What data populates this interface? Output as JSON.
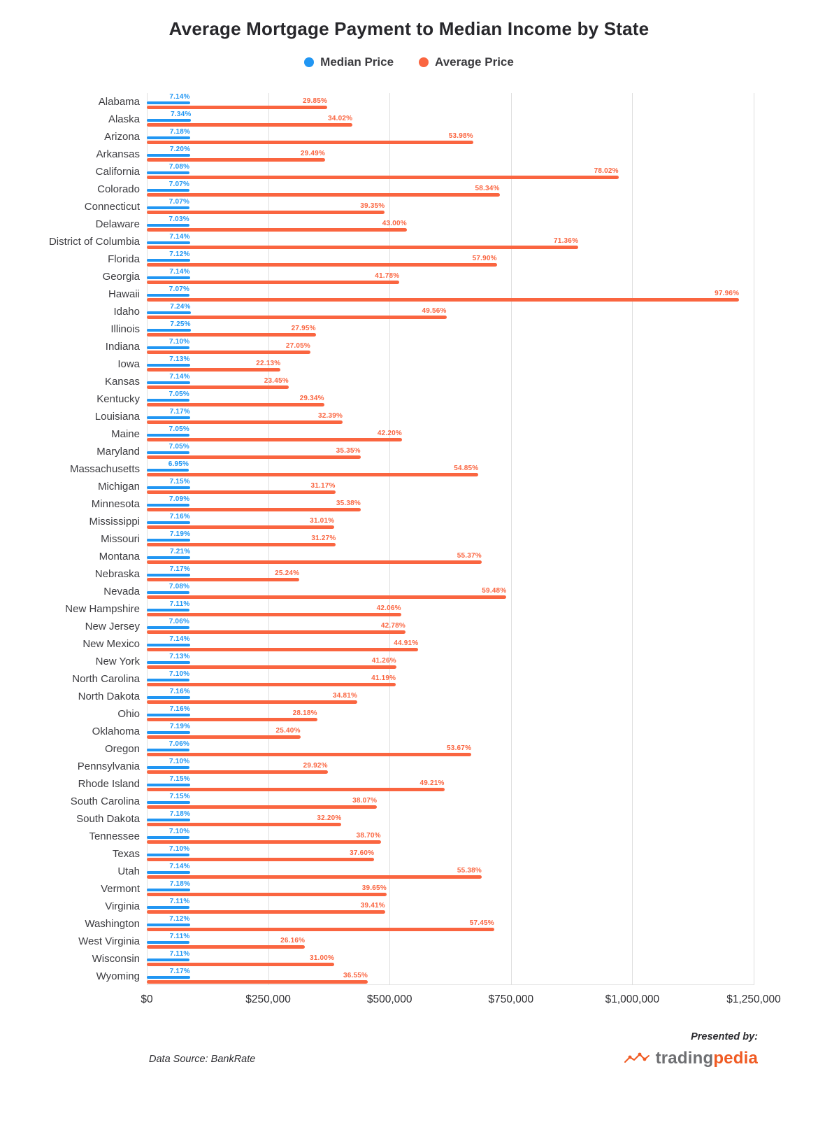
{
  "title": "Average Mortgage Payment to Median Income by State",
  "legend": {
    "items": [
      {
        "label": "Median Price",
        "color": "#2196f3"
      },
      {
        "label": "Average Price",
        "color": "#fa6540"
      }
    ]
  },
  "footer": {
    "source": "Data Source: BankRate",
    "presented_by": "Presented by:",
    "brand": {
      "part1": "trading",
      "part2": "pedia"
    }
  },
  "chart_data": {
    "type": "bar",
    "orientation": "horizontal",
    "title": "Average Mortgage Payment to Median Income by State",
    "legend_position": "top",
    "grid": "vertical",
    "value_suffix": "%",
    "dollars_per_percent": 12455,
    "x_axis": {
      "ticks": [
        "$0",
        "$250,000",
        "$500,000",
        "$750,000",
        "$1,000,000",
        "$1,250,000"
      ],
      "max_dollars": 1250000
    },
    "categories": [
      "Alabama",
      "Alaska",
      "Arizona",
      "Arkansas",
      "California",
      "Colorado",
      "Connecticut",
      "Delaware",
      "District of Columbia",
      "Florida",
      "Georgia",
      "Hawaii",
      "Idaho",
      "Illinois",
      "Indiana",
      "Iowa",
      "Kansas",
      "Kentucky",
      "Louisiana",
      "Maine",
      "Maryland",
      "Massachusetts",
      "Michigan",
      "Minnesota",
      "Mississippi",
      "Missouri",
      "Montana",
      "Nebraska",
      "Nevada",
      "New Hampshire",
      "New Jersey",
      "New Mexico",
      "New York",
      "North Carolina",
      "North Dakota",
      "Ohio",
      "Oklahoma",
      "Oregon",
      "Pennsylvania",
      "Rhode Island",
      "South Carolina",
      "South Dakota",
      "Tennessee",
      "Texas",
      "Utah",
      "Vermont",
      "Virginia",
      "Washington",
      "West Virginia",
      "Wisconsin",
      "Wyoming"
    ],
    "series": [
      {
        "name": "Median Price",
        "color": "#2196f3",
        "values": [
          7.14,
          7.34,
          7.18,
          7.2,
          7.08,
          7.07,
          7.07,
          7.03,
          7.14,
          7.12,
          7.14,
          7.07,
          7.24,
          7.25,
          7.1,
          7.13,
          7.14,
          7.05,
          7.17,
          7.05,
          7.05,
          6.95,
          7.15,
          7.09,
          7.16,
          7.19,
          7.21,
          7.17,
          7.08,
          7.11,
          7.06,
          7.14,
          7.13,
          7.1,
          7.16,
          7.16,
          7.19,
          7.06,
          7.1,
          7.15,
          7.15,
          7.18,
          7.1,
          7.1,
          7.14,
          7.18,
          7.11,
          7.12,
          7.11,
          7.11,
          7.17
        ]
      },
      {
        "name": "Average Price",
        "color": "#fa6540",
        "values": [
          29.85,
          34.02,
          53.98,
          29.49,
          78.02,
          58.34,
          39.35,
          43.0,
          71.36,
          57.9,
          41.78,
          97.96,
          49.56,
          27.95,
          27.05,
          22.13,
          23.45,
          29.34,
          32.39,
          42.2,
          35.35,
          54.85,
          31.17,
          35.38,
          31.01,
          31.27,
          55.37,
          25.24,
          59.48,
          42.06,
          42.78,
          44.91,
          41.26,
          41.19,
          34.81,
          28.18,
          25.4,
          53.67,
          29.92,
          49.21,
          38.07,
          32.2,
          38.7,
          37.6,
          55.38,
          39.65,
          39.41,
          57.45,
          26.16,
          31.0,
          36.55
        ]
      }
    ]
  }
}
